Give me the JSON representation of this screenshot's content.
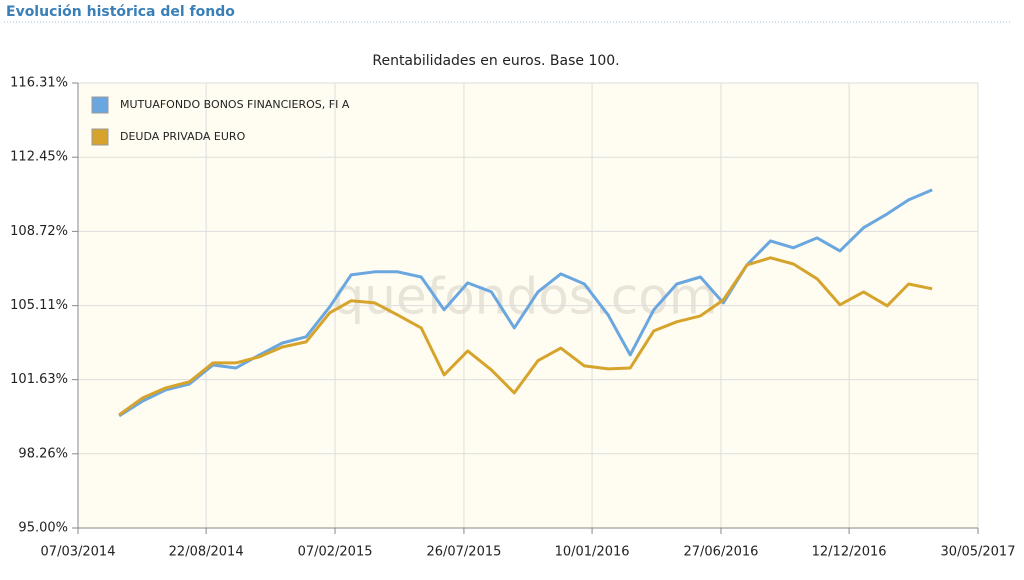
{
  "header": {
    "title": "Evolución histórica del fondo"
  },
  "chart_data": {
    "type": "line",
    "title": "Rentabilidades en euros. Base 100.",
    "watermark": "quefondos.com",
    "log_scale_y": true,
    "grid": true,
    "legend": "top-left",
    "x": [
      "2014-04-30",
      "2014-05-31",
      "2014-06-30",
      "2014-07-31",
      "2014-08-31",
      "2014-09-30",
      "2014-10-31",
      "2014-11-30",
      "2014-12-31",
      "2015-01-31",
      "2015-02-28",
      "2015-03-31",
      "2015-04-30",
      "2015-05-31",
      "2015-06-30",
      "2015-07-31",
      "2015-08-31",
      "2015-09-30",
      "2015-10-31",
      "2015-11-30",
      "2015-12-31",
      "2016-01-31",
      "2016-02-29",
      "2016-03-31",
      "2016-04-30",
      "2016-05-31",
      "2016-06-30",
      "2016-07-31",
      "2016-08-31",
      "2016-09-30",
      "2016-10-31",
      "2016-11-30",
      "2016-12-31",
      "2017-01-31",
      "2017-02-28",
      "2017-03-31"
    ],
    "series": [
      {
        "name": "MUTUAFONDO BONOS FINANCIEROS, FI A",
        "color": "#6aa7e0",
        "values": [
          99.97,
          100.65,
          101.16,
          101.43,
          102.31,
          102.17,
          102.78,
          103.34,
          103.63,
          105.05,
          106.59,
          106.74,
          106.74,
          106.49,
          104.91,
          106.2,
          105.77,
          104.05,
          105.77,
          106.64,
          106.15,
          104.67,
          102.78,
          104.91,
          106.15,
          106.49,
          105.24,
          107.07,
          108.25,
          107.91,
          108.4,
          107.76,
          108.9,
          109.59,
          110.29,
          110.79
        ]
      },
      {
        "name": "DEUDA PRIVADA EURO",
        "color": "#d6a42c",
        "values": [
          100.02,
          100.79,
          101.25,
          101.53,
          102.41,
          102.41,
          102.69,
          103.15,
          103.39,
          104.77,
          105.34,
          105.24,
          104.67,
          104.05,
          101.85,
          102.97,
          102.08,
          101.02,
          102.51,
          103.1,
          102.27,
          102.13,
          102.17,
          103.91,
          104.34,
          104.62,
          105.38,
          107.07,
          107.42,
          107.12,
          106.4,
          105.15,
          105.77,
          105.1,
          106.15,
          105.92
        ]
      }
    ],
    "xlim": [
      "2014-03-07",
      "2017-05-30"
    ],
    "xticks": [
      {
        "value": "2014-03-07",
        "label": "07/03/2014"
      },
      {
        "value": "2014-08-22",
        "label": "22/08/2014"
      },
      {
        "value": "2015-02-07",
        "label": "07/02/2015"
      },
      {
        "value": "2015-07-26",
        "label": "26/07/2015"
      },
      {
        "value": "2016-01-10",
        "label": "10/01/2016"
      },
      {
        "value": "2016-06-27",
        "label": "27/06/2016"
      },
      {
        "value": "2016-12-12",
        "label": "12/12/2016"
      },
      {
        "value": "2017-05-30",
        "label": "30/05/2017"
      }
    ],
    "ylim": [
      95,
      116.31
    ],
    "yticks": [
      {
        "value": 95,
        "label": "95.00%"
      },
      {
        "value": 98.26,
        "label": "98.26%"
      },
      {
        "value": 101.63,
        "label": "101.63%"
      },
      {
        "value": 105.11,
        "label": "105.11%"
      },
      {
        "value": 108.72,
        "label": "108.72%"
      },
      {
        "value": 112.45,
        "label": "112.45%"
      },
      {
        "value": 116.31,
        "label": "116.31%"
      }
    ]
  }
}
